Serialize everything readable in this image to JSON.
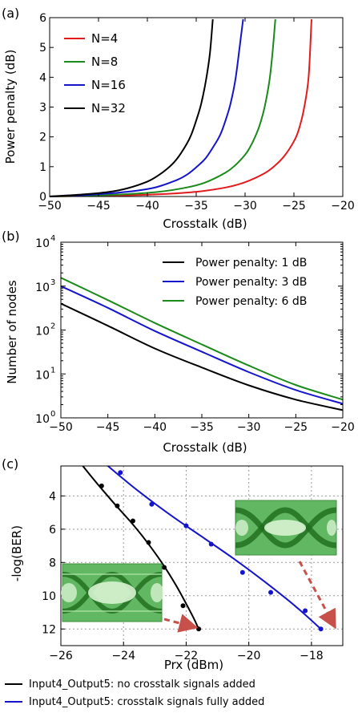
{
  "chart_data": [
    {
      "panel_label": "(a)",
      "type": "line",
      "xlabel": "Crosstalk (dB)",
      "ylabel": "Power penalty (dB)",
      "xlim": [
        -50,
        -20
      ],
      "ylim": [
        0,
        6
      ],
      "xticks": [
        "−50",
        "−45",
        "−40",
        "−35",
        "−30",
        "−25",
        "−20"
      ],
      "yticks": [
        "0",
        "1",
        "2",
        "3",
        "4",
        "5",
        "6"
      ],
      "grid": false,
      "legend_position": "upper-left",
      "series": [
        {
          "name": "N=4",
          "color": "#e41a1c",
          "x": [
            -50,
            -46,
            -42,
            -38,
            -35,
            -32,
            -30,
            -28,
            -27,
            -26,
            -25,
            -24.5,
            -24,
            -23.5,
            -23.2
          ],
          "y": [
            0.0,
            0.02,
            0.04,
            0.09,
            0.16,
            0.3,
            0.48,
            0.78,
            1.02,
            1.35,
            1.85,
            2.25,
            2.9,
            4.0,
            5.95
          ]
        },
        {
          "name": "N=8",
          "color": "#1a8a1a",
          "x": [
            -50,
            -46,
            -42,
            -39,
            -36,
            -34,
            -32,
            -31,
            -30,
            -29.5,
            -29,
            -28.5,
            -28,
            -27.5,
            -27.2,
            -26.9
          ],
          "y": [
            0.0,
            0.03,
            0.08,
            0.15,
            0.3,
            0.48,
            0.8,
            1.05,
            1.4,
            1.65,
            1.98,
            2.4,
            3.0,
            3.9,
            4.8,
            5.95
          ]
        },
        {
          "name": "N=16",
          "color": "#1414cc",
          "x": [
            -50,
            -47,
            -44,
            -41,
            -39,
            -37,
            -36,
            -35,
            -34,
            -33,
            -32.5,
            -32,
            -31.5,
            -31,
            -30.6,
            -30.2
          ],
          "y": [
            0.0,
            0.04,
            0.1,
            0.2,
            0.32,
            0.55,
            0.72,
            0.98,
            1.3,
            1.8,
            2.1,
            2.55,
            3.1,
            3.9,
            4.9,
            5.95
          ]
        },
        {
          "name": "N=32",
          "color": "#000000",
          "x": [
            -50,
            -47,
            -44,
            -42,
            -40,
            -39,
            -38,
            -37,
            -36,
            -35.5,
            -35,
            -34.5,
            -34,
            -33.6,
            -33.3
          ],
          "y": [
            0.0,
            0.06,
            0.15,
            0.28,
            0.5,
            0.68,
            0.92,
            1.25,
            1.75,
            2.08,
            2.55,
            3.1,
            3.9,
            4.8,
            5.95
          ]
        }
      ]
    },
    {
      "panel_label": "(b)",
      "type": "line",
      "xlabel": "Crosstalk (dB)",
      "ylabel": "Number of nodes",
      "xlim": [
        -50,
        -20
      ],
      "ylim": [
        1,
        10000
      ],
      "yscale": "log",
      "xticks": [
        "−50",
        "−45",
        "−40",
        "−35",
        "−30",
        "−25",
        "−20"
      ],
      "yticks": [
        {
          "v": 1,
          "base": "10",
          "exp": "0"
        },
        {
          "v": 10,
          "base": "10",
          "exp": "1"
        },
        {
          "v": 100,
          "base": "10",
          "exp": "2"
        },
        {
          "v": 1000,
          "base": "10",
          "exp": "3"
        },
        {
          "v": 10000,
          "base": "10",
          "exp": "4"
        }
      ],
      "grid": false,
      "legend_position": "upper-right",
      "series": [
        {
          "name": "Power penalty: 1 dB",
          "color": "#000000",
          "x": [
            -50,
            -45,
            -40,
            -35,
            -30,
            -25,
            -20
          ],
          "y": [
            400,
            125,
            38,
            14,
            5.5,
            2.6,
            1.5
          ]
        },
        {
          "name": "Power penalty: 3 dB",
          "color": "#1414cc",
          "x": [
            -50,
            -45,
            -40,
            -35,
            -30,
            -25,
            -20
          ],
          "y": [
            1000,
            320,
            95,
            32,
            11,
            4.3,
            2.1
          ]
        },
        {
          "name": "Power penalty: 6 dB",
          "color": "#1a8a1a",
          "x": [
            -50,
            -45,
            -40,
            -35,
            -30,
            -25,
            -20
          ],
          "y": [
            1550,
            480,
            145,
            47,
            15.5,
            5.6,
            2.6
          ]
        }
      ]
    },
    {
      "panel_label": "(c)",
      "type": "scatter",
      "xlabel": "Prx (dBm)",
      "ylabel": "-log(BER)",
      "xlim": [
        -26,
        -17
      ],
      "ylim": [
        13,
        2.2
      ],
      "xticks": [
        "−26",
        "−24",
        "−22",
        "−20",
        "−18"
      ],
      "yticks": [
        "4",
        "6",
        "8",
        "10",
        "12"
      ],
      "grid": true,
      "legend_position": "below",
      "series": [
        {
          "name": "Input4_Output5: no crosstalk signals added",
          "color": "#000000",
          "x": [
            -24.7,
            -24.2,
            -23.7,
            -23.2,
            -22.7,
            -22.1,
            -21.6
          ],
          "y": [
            3.4,
            4.6,
            5.5,
            6.8,
            8.3,
            10.6,
            12.0
          ],
          "fit_x": [
            -25.3,
            -24.8,
            -24.3,
            -23.8,
            -23.3,
            -22.8,
            -22.3,
            -21.8,
            -21.6
          ],
          "fit_y": [
            2.2,
            3.35,
            4.45,
            5.5,
            6.65,
            7.95,
            9.45,
            11.2,
            12.0
          ]
        },
        {
          "name": "Input4_Output5: crosstalk signals fully added",
          "color": "#1414cc",
          "x": [
            -24.1,
            -23.1,
            -22.0,
            -21.2,
            -20.2,
            -19.3,
            -18.2,
            -17.7
          ],
          "y": [
            2.6,
            4.5,
            5.8,
            6.9,
            8.6,
            9.8,
            10.9,
            12.0
          ],
          "fit_x": [
            -24.5,
            -23.5,
            -22.5,
            -21.5,
            -20.5,
            -19.5,
            -18.5,
            -17.7
          ],
          "fit_y": [
            2.2,
            3.75,
            5.15,
            6.45,
            7.75,
            9.15,
            10.65,
            12.0
          ]
        }
      ]
    }
  ],
  "colors": {
    "arrow": "#c8504a",
    "eye_bg": "#5cb85c",
    "eye_dark": "#1e6b1e"
  },
  "legend_c": [
    {
      "label": "Input4_Output5: no crosstalk signals added",
      "color": "#000000"
    },
    {
      "label": "Input4_Output5: crosstalk signals fully added",
      "color": "#1414cc"
    }
  ]
}
